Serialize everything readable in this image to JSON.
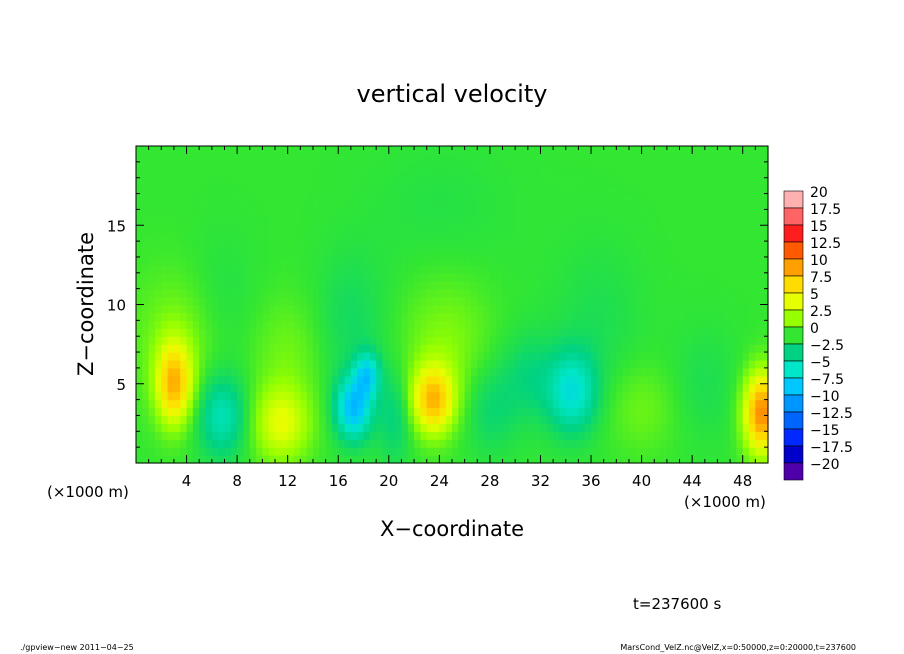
{
  "chart_data": {
    "type": "heatmap",
    "title": "vertical velocity",
    "xlabel": "X−coordinate",
    "ylabel": "Z−coordinate",
    "x_unit_left": "(×1000 m)",
    "x_unit_right": "(×1000 m)",
    "xlim": [
      0,
      50
    ],
    "ylim": [
      0,
      20
    ],
    "x_ticks": [
      4,
      8,
      12,
      16,
      20,
      24,
      28,
      32,
      36,
      40,
      44,
      48
    ],
    "x_tick_labels": [
      "4",
      "8",
      "12",
      "16",
      "20",
      "24",
      "28",
      "32",
      "36",
      "40",
      "44",
      "48"
    ],
    "y_ticks": [
      5,
      10,
      15
    ],
    "y_tick_labels": [
      "5",
      "10",
      "15"
    ],
    "colorbar": {
      "levels": [
        20,
        17.5,
        15,
        12.5,
        10,
        7.5,
        5,
        2.5,
        0,
        -2.5,
        -5,
        -7.5,
        -10,
        -12.5,
        -15,
        -17.5,
        -20
      ],
      "labels": [
        "20",
        "17.5",
        "15",
        "12.5",
        "10",
        "7.5",
        "5",
        "2.5",
        "0",
        "−2.5",
        "−5",
        "−7.5",
        "−10",
        "−12.5",
        "−15",
        "−17.5",
        "−20"
      ],
      "colors": [
        "#ffb0b0",
        "#ff6464",
        "#ff1e1e",
        "#ff5a00",
        "#ffa000",
        "#ffdc00",
        "#e6ff00",
        "#96ff00",
        "#32e632",
        "#00d282",
        "#00e6c8",
        "#00c8ff",
        "#0096ff",
        "#0064ff",
        "#0028ff",
        "#0000c8",
        "#5000aa"
      ]
    },
    "background_value": 0,
    "features": [
      {
        "x": 3.0,
        "z": 5.0,
        "sx": 1.0,
        "sz": 1.8,
        "value": 8.5
      },
      {
        "x": 3.5,
        "z": 8.0,
        "sx": 2.5,
        "sz": 3.0,
        "value": 2.0
      },
      {
        "x": 6.8,
        "z": 3.0,
        "sx": 1.4,
        "sz": 1.8,
        "value": -4.5
      },
      {
        "x": 6.5,
        "z": 10.0,
        "sx": 2.0,
        "sz": 3.0,
        "value": -1.0
      },
      {
        "x": 11.5,
        "z": 2.5,
        "sx": 1.6,
        "sz": 1.7,
        "value": 5.0
      },
      {
        "x": 12.0,
        "z": 7.0,
        "sx": 2.0,
        "sz": 2.5,
        "value": 1.5
      },
      {
        "x": 17.2,
        "z": 3.5,
        "sx": 1.0,
        "sz": 1.4,
        "value": -8.0
      },
      {
        "x": 18.3,
        "z": 5.6,
        "sx": 0.7,
        "sz": 1.0,
        "value": -6.0
      },
      {
        "x": 17.0,
        "z": 9.0,
        "sx": 2.0,
        "sz": 3.0,
        "value": -1.5
      },
      {
        "x": 20.5,
        "z": 3.0,
        "sx": 1.0,
        "sz": 2.0,
        "value": -2.5
      },
      {
        "x": 23.5,
        "z": 4.0,
        "sx": 1.2,
        "sz": 1.5,
        "value": 8.5
      },
      {
        "x": 24.5,
        "z": 7.5,
        "sx": 2.5,
        "sz": 3.0,
        "value": 2.0
      },
      {
        "x": 28.0,
        "z": 3.5,
        "sx": 1.5,
        "sz": 2.0,
        "value": -2.0
      },
      {
        "x": 31.0,
        "z": 5.5,
        "sx": 1.5,
        "sz": 2.0,
        "value": -2.0
      },
      {
        "x": 34.5,
        "z": 4.5,
        "sx": 1.4,
        "sz": 1.8,
        "value": -5.5
      },
      {
        "x": 36.5,
        "z": 9.0,
        "sx": 2.5,
        "sz": 3.5,
        "value": -1.0
      },
      {
        "x": 40.0,
        "z": 3.5,
        "sx": 2.0,
        "sz": 2.0,
        "value": 1.5
      },
      {
        "x": 45.0,
        "z": 5.0,
        "sx": 2.0,
        "sz": 2.5,
        "value": -1.0
      },
      {
        "x": 49.5,
        "z": 3.2,
        "sx": 1.0,
        "sz": 1.8,
        "value": 11.0
      },
      {
        "x": 24.0,
        "z": 16.0,
        "sx": 4.0,
        "sz": 3.0,
        "value": -0.6
      }
    ]
  },
  "time_label": "t=237600 s",
  "footer_left": "./gpview−new   2011−04−25",
  "footer_right": "MarsCond_VelZ.nc@VelZ,x=0:50000,z=0:20000,t=237600"
}
